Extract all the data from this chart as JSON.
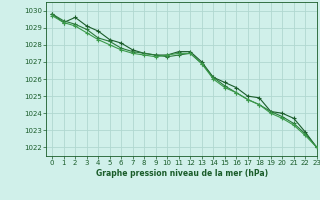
{
  "title": "Graphe pression niveau de la mer (hPa)",
  "background_color": "#d0f0ea",
  "grid_color": "#b0d8d0",
  "line_color_dark": "#1a5c2a",
  "line_color_mid": "#2a7a3a",
  "line_color_light": "#3a9a4a",
  "xlim": [
    -0.5,
    23
  ],
  "ylim": [
    1021.5,
    1030.5
  ],
  "yticks": [
    1022,
    1023,
    1024,
    1025,
    1026,
    1027,
    1028,
    1029,
    1030
  ],
  "xticks": [
    0,
    1,
    2,
    3,
    4,
    5,
    6,
    7,
    8,
    9,
    10,
    11,
    12,
    13,
    14,
    15,
    16,
    17,
    18,
    19,
    20,
    21,
    22,
    23
  ],
  "series1": [
    1029.8,
    1029.3,
    1029.6,
    1029.1,
    1028.8,
    1028.3,
    1028.1,
    1027.7,
    1027.5,
    1027.4,
    1027.4,
    1027.6,
    1027.6,
    1027.0,
    1026.1,
    1025.8,
    1025.5,
    1025.0,
    1024.9,
    1024.1,
    1024.0,
    1023.7,
    1022.9,
    1022.0
  ],
  "series2": [
    1029.8,
    1029.4,
    1029.2,
    1028.9,
    1028.4,
    1028.2,
    1027.8,
    1027.6,
    1027.5,
    1027.4,
    1027.3,
    1027.4,
    1027.5,
    1026.9,
    1026.1,
    1025.6,
    1025.2,
    1024.8,
    1024.5,
    1024.1,
    1023.8,
    1023.4,
    1022.8,
    1022.0
  ],
  "series3": [
    1029.7,
    1029.3,
    1029.1,
    1028.7,
    1028.3,
    1028.0,
    1027.7,
    1027.5,
    1027.4,
    1027.3,
    1027.4,
    1027.5,
    1027.5,
    1026.9,
    1026.0,
    1025.5,
    1025.2,
    1024.8,
    1024.5,
    1024.0,
    1023.7,
    1023.3,
    1022.7,
    1022.0
  ]
}
